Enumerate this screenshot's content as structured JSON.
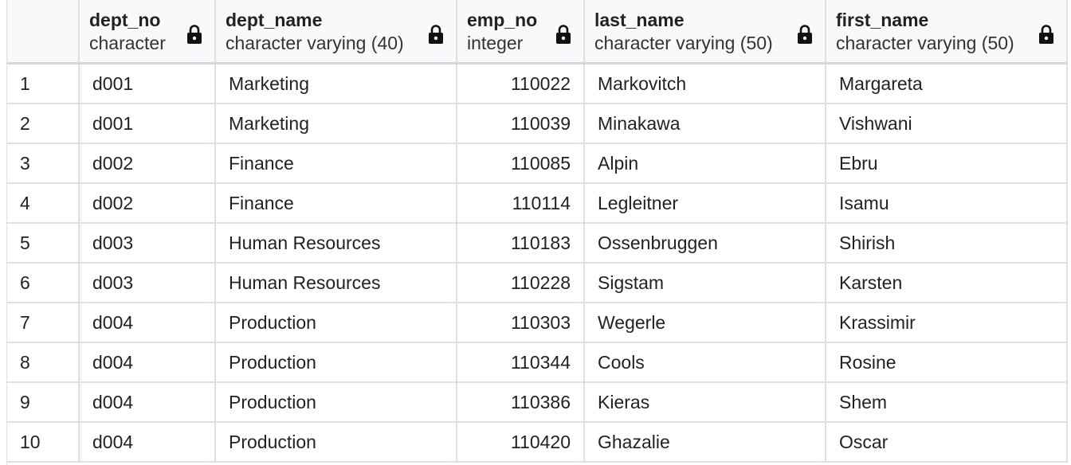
{
  "columns": [
    {
      "name": "dept_no",
      "type": "character"
    },
    {
      "name": "dept_name",
      "type": "character varying (40)"
    },
    {
      "name": "emp_no",
      "type": "integer"
    },
    {
      "name": "last_name",
      "type": "character varying (50)"
    },
    {
      "name": "first_name",
      "type": "character varying (50)"
    }
  ],
  "rows": [
    {
      "n": "1",
      "dept_no": "d001",
      "dept_name": "Marketing",
      "emp_no": "110022",
      "last_name": "Markovitch",
      "first_name": "Margareta"
    },
    {
      "n": "2",
      "dept_no": "d001",
      "dept_name": "Marketing",
      "emp_no": "110039",
      "last_name": "Minakawa",
      "first_name": "Vishwani"
    },
    {
      "n": "3",
      "dept_no": "d002",
      "dept_name": "Finance",
      "emp_no": "110085",
      "last_name": "Alpin",
      "first_name": "Ebru"
    },
    {
      "n": "4",
      "dept_no": "d002",
      "dept_name": "Finance",
      "emp_no": "110114",
      "last_name": "Legleitner",
      "first_name": "Isamu"
    },
    {
      "n": "5",
      "dept_no": "d003",
      "dept_name": "Human Resources",
      "emp_no": "110183",
      "last_name": "Ossenbruggen",
      "first_name": "Shirish"
    },
    {
      "n": "6",
      "dept_no": "d003",
      "dept_name": "Human Resources",
      "emp_no": "110228",
      "last_name": "Sigstam",
      "first_name": "Karsten"
    },
    {
      "n": "7",
      "dept_no": "d004",
      "dept_name": "Production",
      "emp_no": "110303",
      "last_name": "Wegerle",
      "first_name": "Krassimir"
    },
    {
      "n": "8",
      "dept_no": "d004",
      "dept_name": "Production",
      "emp_no": "110344",
      "last_name": "Cools",
      "first_name": "Rosine"
    },
    {
      "n": "9",
      "dept_no": "d004",
      "dept_name": "Production",
      "emp_no": "110386",
      "last_name": "Kieras",
      "first_name": "Shem"
    },
    {
      "n": "10",
      "dept_no": "d004",
      "dept_name": "Production",
      "emp_no": "110420",
      "last_name": "Ghazalie",
      "first_name": "Oscar"
    }
  ],
  "icons": {
    "column_lock": "lock-icon"
  },
  "colors": {
    "grid_line": "#dde0e4",
    "header_bg": "#f8f9fa",
    "text": "#222222"
  }
}
